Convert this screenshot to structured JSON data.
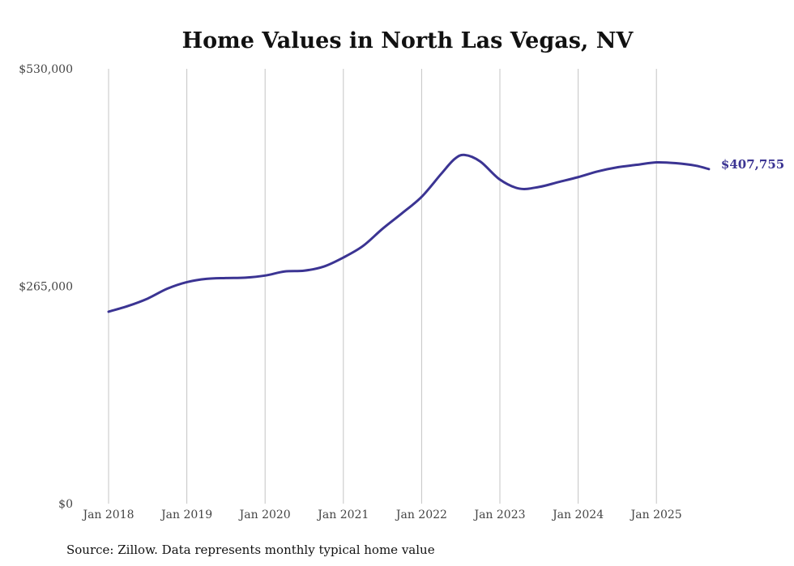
{
  "chart_data": {
    "type": "line",
    "title": "Home Values in North Las Vegas, NV",
    "xlabel": "",
    "ylabel": "",
    "source": "Source: Zillow. Data represents monthly typical home value",
    "ylim": [
      0,
      530000
    ],
    "xlim": [
      2018.0,
      2025.67
    ],
    "y_ticks": [
      {
        "value": 0,
        "label": "$0"
      },
      {
        "value": 265000,
        "label": "$265,000"
      },
      {
        "value": 530000,
        "label": "$530,000"
      }
    ],
    "x_ticks": [
      {
        "value": 2018,
        "label": "Jan 2018"
      },
      {
        "value": 2019,
        "label": "Jan 2019"
      },
      {
        "value": 2020,
        "label": "Jan 2020"
      },
      {
        "value": 2021,
        "label": "Jan 2021"
      },
      {
        "value": 2022,
        "label": "Jan 2022"
      },
      {
        "value": 2023,
        "label": "Jan 2023"
      },
      {
        "value": 2024,
        "label": "Jan 2024"
      },
      {
        "value": 2025,
        "label": "Jan 2025"
      }
    ],
    "grid": "vertical",
    "series": [
      {
        "name": "Home value",
        "color": "#3b3493",
        "end_label": "$407,755",
        "x": [
          2018.0,
          2018.25,
          2018.5,
          2018.75,
          2019.0,
          2019.25,
          2019.5,
          2019.75,
          2020.0,
          2020.25,
          2020.5,
          2020.75,
          2021.0,
          2021.25,
          2021.5,
          2021.75,
          2022.0,
          2022.25,
          2022.42,
          2022.55,
          2022.75,
          2023.0,
          2023.25,
          2023.5,
          2023.75,
          2024.0,
          2024.25,
          2024.5,
          2024.75,
          2025.0,
          2025.25,
          2025.5,
          2025.67
        ],
        "y": [
          234000,
          241000,
          250000,
          262000,
          270000,
          274000,
          275000,
          275500,
          278000,
          283000,
          284000,
          289000,
          300000,
          314000,
          335000,
          354000,
          374000,
          402000,
          420000,
          425000,
          417000,
          395000,
          384000,
          386000,
          392000,
          398000,
          405000,
          410000,
          413000,
          416000,
          415000,
          412000,
          407755
        ]
      }
    ]
  }
}
